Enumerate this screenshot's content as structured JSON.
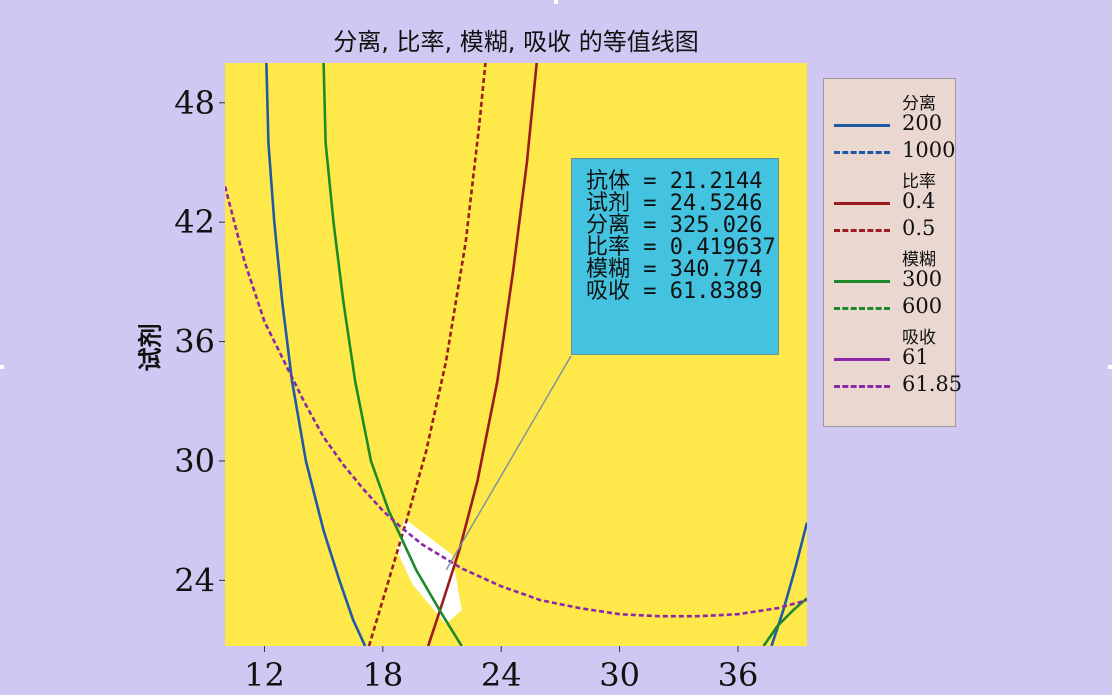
{
  "chart_data": {
    "type": "contour",
    "title": "分离, 比率, 模糊, 吸收 的等值线图",
    "xlabel": "",
    "ylabel": "试剂",
    "xlim": [
      10,
      39.5
    ],
    "ylim": [
      20.7,
      50
    ],
    "xticks": [
      12,
      18,
      24,
      30,
      36
    ],
    "yticks": [
      24,
      30,
      36,
      42,
      48
    ],
    "background_color": "#ffe84a",
    "feasible_region_color": "#ffffff",
    "series": [
      {
        "name": "分离",
        "level": "200",
        "color": "#1f5aa6",
        "style": "solid",
        "points": [
          [
            12.1,
            50
          ],
          [
            12.2,
            46
          ],
          [
            12.5,
            42
          ],
          [
            12.9,
            38
          ],
          [
            13.4,
            34
          ],
          [
            14.1,
            30
          ],
          [
            15,
            26.5
          ],
          [
            15.8,
            24
          ],
          [
            16.5,
            22
          ],
          [
            17.1,
            20.7
          ]
        ]
      },
      {
        "name": "分离",
        "level": "200",
        "color": "#1f5aa6",
        "style": "solid",
        "points": [
          [
            37.7,
            20.7
          ],
          [
            38.3,
            22.5
          ],
          [
            38.9,
            24.6
          ],
          [
            39.5,
            26.9
          ]
        ]
      },
      {
        "name": "分离",
        "level": "1000",
        "color": "#1f5aa6",
        "style": "dashed",
        "points": []
      },
      {
        "name": "比率",
        "level": "0.4",
        "color": "#9b1b1e",
        "style": "solid",
        "points": [
          [
            20.3,
            20.7
          ],
          [
            21,
            22.8
          ],
          [
            21.9,
            25.6
          ],
          [
            22.8,
            29
          ],
          [
            23.8,
            34
          ],
          [
            24.6,
            39.5
          ],
          [
            25.3,
            45
          ],
          [
            25.8,
            50
          ]
        ]
      },
      {
        "name": "比率",
        "level": "0.5",
        "color": "#9b1b1e",
        "style": "dashed",
        "points": [
          [
            17.3,
            20.7
          ],
          [
            18.3,
            24
          ],
          [
            19.2,
            27
          ],
          [
            20.2,
            30.5
          ],
          [
            21.2,
            35
          ],
          [
            22.2,
            41
          ],
          [
            22.9,
            47
          ],
          [
            23.2,
            50
          ]
        ]
      },
      {
        "name": "模糊",
        "level": "300",
        "color": "#1d8a2a",
        "style": "solid",
        "points": [
          [
            15,
            50
          ],
          [
            15.1,
            46
          ],
          [
            15.5,
            42
          ],
          [
            16,
            38
          ],
          [
            16.6,
            34
          ],
          [
            17.4,
            30
          ],
          [
            18.3,
            27.5
          ],
          [
            19.7,
            24.5
          ],
          [
            21,
            22.3
          ],
          [
            22,
            20.7
          ]
        ]
      },
      {
        "name": "模糊",
        "level": "300",
        "color": "#1d8a2a",
        "style": "solid",
        "points": [
          [
            37.3,
            20.7
          ],
          [
            38,
            21.7
          ],
          [
            38.8,
            22.5
          ],
          [
            39.5,
            23.1
          ]
        ]
      },
      {
        "name": "模糊",
        "level": "600",
        "color": "#1d8a2a",
        "style": "dashed",
        "points": []
      },
      {
        "name": "吸收",
        "level": "61",
        "color": "#8b28a8",
        "style": "solid",
        "points": []
      },
      {
        "name": "吸收",
        "level": "61.85",
        "color": "#8b28a8",
        "style": "dashed",
        "points": [
          [
            10,
            43.8
          ],
          [
            11,
            40
          ],
          [
            12,
            37
          ],
          [
            13,
            35
          ],
          [
            14,
            33
          ],
          [
            15,
            31.2
          ],
          [
            16,
            29.8
          ],
          [
            17,
            28.6
          ],
          [
            18,
            27.5
          ],
          [
            19,
            26.6
          ],
          [
            20,
            25.8
          ],
          [
            22,
            24.6
          ],
          [
            24,
            23.7
          ],
          [
            26,
            23
          ],
          [
            28,
            22.6
          ],
          [
            30,
            22.3
          ],
          [
            32,
            22.2
          ],
          [
            34,
            22.2
          ],
          [
            36,
            22.3
          ],
          [
            38,
            22.6
          ],
          [
            39.5,
            23
          ]
        ]
      }
    ],
    "feasible_region": [
      [
        19.1,
        27.1
      ],
      [
        21.5,
        25.3
      ],
      [
        22,
        22.5
      ],
      [
        21.2,
        21.8
      ],
      [
        19.5,
        23.8
      ],
      [
        18.7,
        25.5
      ]
    ],
    "annotation": {
      "anchor": [
        21.2144,
        24.5246
      ],
      "lines": [
        {
          "label": "抗体",
          "value": "21.2144"
        },
        {
          "label": "试剂",
          "value": "24.5246"
        },
        {
          "label": "分离",
          "value": "325.026"
        },
        {
          "label": "比率",
          "value": "0.419637"
        },
        {
          "label": "模糊",
          "value": "340.774"
        },
        {
          "label": "吸收",
          "value": "61.8389"
        }
      ]
    },
    "legend": {
      "placement": "right",
      "groups": [
        {
          "title": "分离",
          "entries": [
            {
              "label": "200",
              "color": "#1f5aa6",
              "style": "solid"
            },
            {
              "label": "1000",
              "color": "#1f5aa6",
              "style": "dashed"
            }
          ]
        },
        {
          "title": "比率",
          "entries": [
            {
              "label": "0.4",
              "color": "#9b1b1e",
              "style": "solid"
            },
            {
              "label": "0.5",
              "color": "#9b1b1e",
              "style": "dashed"
            }
          ]
        },
        {
          "title": "模糊",
          "entries": [
            {
              "label": "300",
              "color": "#1d8a2a",
              "style": "solid"
            },
            {
              "label": "600",
              "color": "#1d8a2a",
              "style": "dashed"
            }
          ]
        },
        {
          "title": "吸收",
          "entries": [
            {
              "label": "61",
              "color": "#8b28a8",
              "style": "solid"
            },
            {
              "label": "61.85",
              "color": "#8b28a8",
              "style": "dashed"
            }
          ]
        }
      ]
    }
  }
}
